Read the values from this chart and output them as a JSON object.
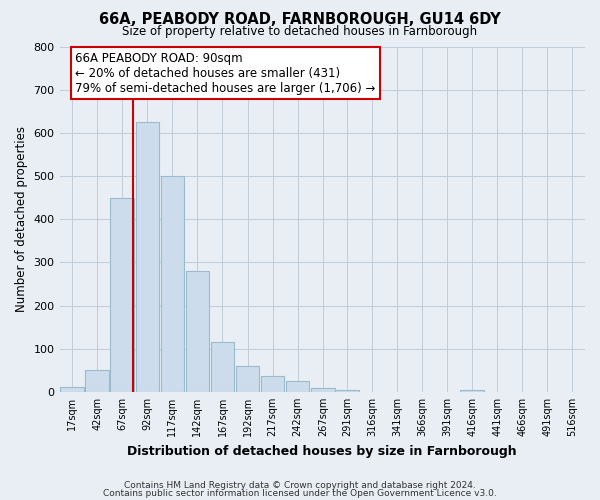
{
  "title": "66A, PEABODY ROAD, FARNBOROUGH, GU14 6DY",
  "subtitle": "Size of property relative to detached houses in Farnborough",
  "xlabel": "Distribution of detached houses by size in Farnborough",
  "ylabel": "Number of detached properties",
  "bar_color": "#ccdcec",
  "bar_edge_color": "#99bbcc",
  "vline_x": 90,
  "vline_color": "#cc0000",
  "bins_left": [
    17,
    42,
    67,
    92,
    117,
    142,
    167,
    192,
    217,
    242,
    267,
    291,
    316,
    341,
    366,
    391,
    416,
    441,
    466,
    491,
    516
  ],
  "bar_heights": [
    12,
    50,
    450,
    625,
    500,
    280,
    115,
    60,
    38,
    25,
    10,
    5,
    0,
    0,
    0,
    0,
    5,
    0,
    0,
    0,
    0
  ],
  "bin_width": 25,
  "ylim": [
    0,
    800
  ],
  "yticks": [
    0,
    100,
    200,
    300,
    400,
    500,
    600,
    700,
    800
  ],
  "xtick_labels": [
    "17sqm",
    "42sqm",
    "67sqm",
    "92sqm",
    "117sqm",
    "142sqm",
    "167sqm",
    "192sqm",
    "217sqm",
    "242sqm",
    "267sqm",
    "291sqm",
    "316sqm",
    "341sqm",
    "366sqm",
    "391sqm",
    "416sqm",
    "441sqm",
    "466sqm",
    "491sqm",
    "516sqm"
  ],
  "annotation_title": "66A PEABODY ROAD: 90sqm",
  "annotation_line1": "← 20% of detached houses are smaller (431)",
  "annotation_line2": "79% of semi-detached houses are larger (1,706) →",
  "footer_line1": "Contains HM Land Registry data © Crown copyright and database right 2024.",
  "footer_line2": "Contains public sector information licensed under the Open Government Licence v3.0.",
  "background_color": "#e8eef4",
  "plot_bg_color": "#e8eef4",
  "grid_color": "#c0ccd8"
}
